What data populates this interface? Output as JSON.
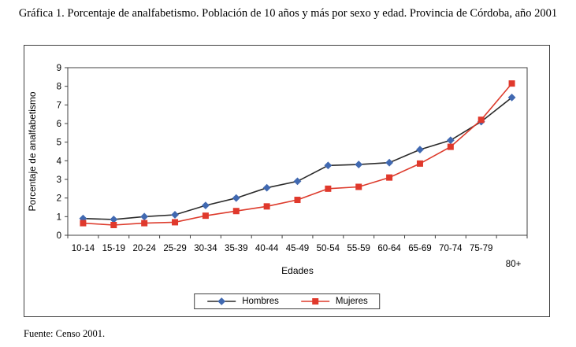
{
  "page": {
    "title": "Gráfica 1. Porcentaje de analfabetismo. Población de 10 años y más por sexo y edad. Provincia de Córdoba, año 2001",
    "source": "Fuente: Censo 2001."
  },
  "chart_data": {
    "type": "line",
    "title": "",
    "xlabel": "Edades",
    "ylabel": "Porcentaje de analfabetismo",
    "ylim": [
      0,
      9
    ],
    "ytick_step": 1,
    "grid": false,
    "legend_position": "bottom",
    "categories": [
      "10-14",
      "15-19",
      "20-24",
      "25-29",
      "30-34",
      "35-39",
      "40-44",
      "45-49",
      "50-54",
      "55-59",
      "60-64",
      "65-69",
      "70-74",
      "75-79",
      "80+"
    ],
    "series": [
      {
        "name": "Hombres",
        "marker": "diamond",
        "line_color": "#2a2a2a",
        "marker_color": "#4169b1",
        "values": [
          0.9,
          0.85,
          1.0,
          1.1,
          1.6,
          2.0,
          2.55,
          2.9,
          3.75,
          3.8,
          3.9,
          4.6,
          5.1,
          6.1,
          7.4
        ]
      },
      {
        "name": "Mujeres",
        "marker": "square",
        "line_color": "#dd3b2c",
        "marker_color": "#e0392c",
        "values": [
          0.65,
          0.55,
          0.65,
          0.7,
          1.05,
          1.3,
          1.55,
          1.9,
          2.5,
          2.6,
          3.1,
          3.85,
          4.75,
          6.2,
          8.15
        ]
      }
    ]
  }
}
